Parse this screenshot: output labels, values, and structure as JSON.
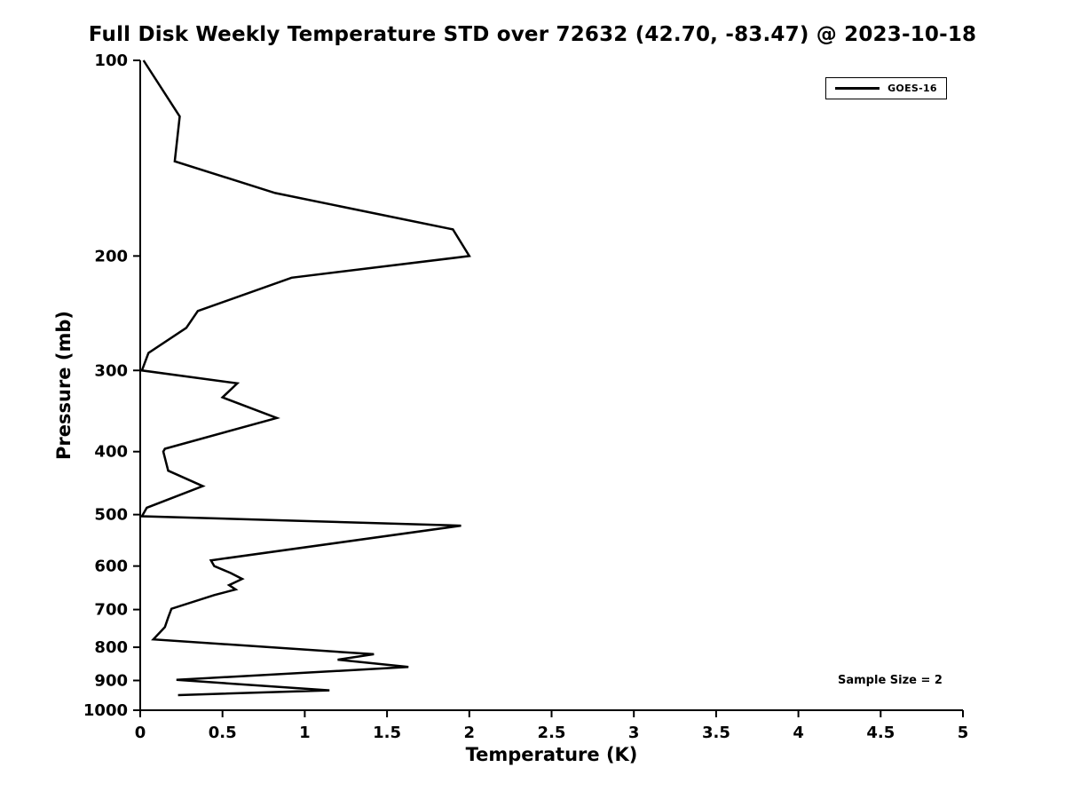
{
  "chart_data": {
    "type": "line",
    "title": "Full Disk Weekly Temperature STD over 72632 (42.70, -83.47) @ 2023-10-18",
    "xlabel": "Temperature (K)",
    "ylabel": "Pressure (mb)",
    "xlim": [
      0,
      5
    ],
    "ylim": [
      100,
      1000
    ],
    "yscale": "log",
    "y_inverted": true,
    "grid": false,
    "background_color": "#ffffff",
    "line_color": "#000000",
    "line_width": 2.5,
    "xticks": [
      0,
      0.5,
      1,
      1.5,
      2,
      2.5,
      3,
      3.5,
      4,
      4.5,
      5
    ],
    "xtick_labels": [
      "0",
      "0.5",
      "1",
      "1.5",
      "2",
      "2.5",
      "3",
      "3.5",
      "4",
      "4.5",
      "5"
    ],
    "yticks": [
      100,
      200,
      300,
      400,
      500,
      600,
      700,
      800,
      900,
      1000
    ],
    "ytick_labels": [
      "100",
      "200",
      "300",
      "400",
      "500",
      "600",
      "700",
      "800",
      "900",
      "1000"
    ],
    "legend": {
      "position": "top-right",
      "entries": [
        {
          "label": "GOES-16",
          "color": "#000000",
          "line_width": 2.5
        }
      ]
    },
    "annotation": "Sample Size = 2",
    "series": [
      {
        "name": "GOES-16",
        "points_format": "[temperature_K, pressure_mb]",
        "points": [
          [
            0.02,
            100
          ],
          [
            0.24,
            122
          ],
          [
            0.21,
            143
          ],
          [
            0.82,
            160
          ],
          [
            1.9,
            182
          ],
          [
            2.0,
            200
          ],
          [
            0.92,
            216
          ],
          [
            0.35,
            243
          ],
          [
            0.28,
            258
          ],
          [
            0.05,
            282
          ],
          [
            0.01,
            300
          ],
          [
            0.59,
            314
          ],
          [
            0.5,
            330
          ],
          [
            0.83,
            355
          ],
          [
            0.15,
            396
          ],
          [
            0.14,
            400
          ],
          [
            0.17,
            428
          ],
          [
            0.38,
            452
          ],
          [
            0.04,
            488
          ],
          [
            0.01,
            503
          ],
          [
            1.95,
            520
          ],
          [
            0.43,
            588
          ],
          [
            0.45,
            600
          ],
          [
            0.55,
            615
          ],
          [
            0.62,
            628
          ],
          [
            0.54,
            642
          ],
          [
            0.58,
            652
          ],
          [
            0.45,
            665
          ],
          [
            0.19,
            698
          ],
          [
            0.17,
            720
          ],
          [
            0.15,
            745
          ],
          [
            0.08,
            778
          ],
          [
            1.42,
            820
          ],
          [
            1.2,
            836
          ],
          [
            1.63,
            858
          ],
          [
            0.22,
            898
          ],
          [
            1.15,
            932
          ],
          [
            0.23,
            948
          ]
        ]
      }
    ]
  }
}
